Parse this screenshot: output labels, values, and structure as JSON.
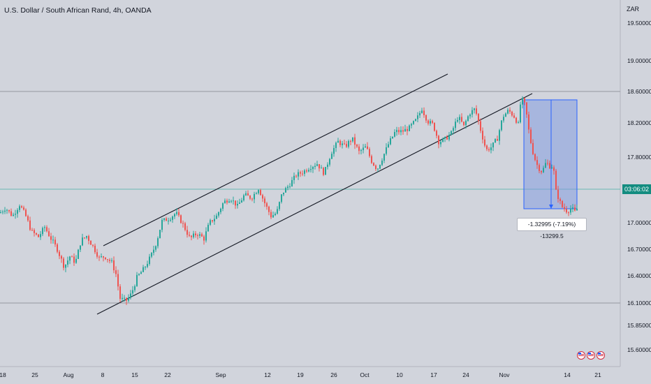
{
  "chart_data": {
    "type": "candlestick",
    "title": "U.S. Dollar / South African Rand, 4h, OANDA",
    "currency": "ZAR",
    "y_ticks": [
      "19.50000",
      "19.00000",
      "18.60000",
      "18.20000",
      "17.80000",
      "17.00000",
      "16.70000",
      "16.40000",
      "16.10000",
      "15.85000",
      "15.60000"
    ],
    "y_tick_values": [
      19.5,
      19.0,
      18.6,
      18.2,
      17.8,
      17.0,
      16.7,
      16.4,
      16.1,
      15.85,
      15.6
    ],
    "x_ticks": [
      "18",
      "25",
      "Aug",
      "8",
      "15",
      "22",
      "Sep",
      "12",
      "19",
      "26",
      "Oct",
      "10",
      "17",
      "24",
      "Nov",
      "14",
      "21"
    ],
    "last_price_countdown": "03:06:02",
    "measurement_label": "-1.32995 (-7.19%) -13299.5",
    "horizontal_levels": [
      18.6,
      16.1
    ],
    "price_path": [
      [
        0,
        17.12
      ],
      [
        8,
        17.18
      ],
      [
        18,
        17.08
      ],
      [
        28,
        17.22
      ],
      [
        36,
        17.1
      ],
      [
        45,
        16.9
      ],
      [
        55,
        16.84
      ],
      [
        64,
        16.95
      ],
      [
        73,
        16.82
      ],
      [
        82,
        16.7
      ],
      [
        92,
        16.5
      ],
      [
        100,
        16.62
      ],
      [
        108,
        16.55
      ],
      [
        116,
        16.8
      ],
      [
        124,
        16.85
      ],
      [
        134,
        16.72
      ],
      [
        142,
        16.6
      ],
      [
        150,
        16.62
      ],
      [
        160,
        16.55
      ],
      [
        166,
        16.42
      ],
      [
        172,
        16.15
      ],
      [
        180,
        16.12
      ],
      [
        188,
        16.2
      ],
      [
        196,
        16.38
      ],
      [
        206,
        16.48
      ],
      [
        216,
        16.62
      ],
      [
        224,
        16.78
      ],
      [
        232,
        17.02
      ],
      [
        242,
        17.05
      ],
      [
        252,
        17.12
      ],
      [
        262,
        16.98
      ],
      [
        272,
        16.82
      ],
      [
        282,
        16.88
      ],
      [
        292,
        16.82
      ],
      [
        300,
        17.0
      ],
      [
        310,
        17.08
      ],
      [
        320,
        17.25
      ],
      [
        330,
        17.3
      ],
      [
        340,
        17.2
      ],
      [
        350,
        17.34
      ],
      [
        360,
        17.3
      ],
      [
        370,
        17.42
      ],
      [
        380,
        17.22
      ],
      [
        388,
        17.08
      ],
      [
        396,
        17.12
      ],
      [
        404,
        17.36
      ],
      [
        414,
        17.46
      ],
      [
        424,
        17.58
      ],
      [
        434,
        17.62
      ],
      [
        444,
        17.68
      ],
      [
        454,
        17.72
      ],
      [
        464,
        17.6
      ],
      [
        474,
        17.85
      ],
      [
        484,
        17.98
      ],
      [
        494,
        17.92
      ],
      [
        504,
        18.02
      ],
      [
        514,
        17.86
      ],
      [
        524,
        17.92
      ],
      [
        532,
        17.75
      ],
      [
        540,
        17.65
      ],
      [
        548,
        17.8
      ],
      [
        556,
        17.95
      ],
      [
        566,
        18.1
      ],
      [
        576,
        18.1
      ],
      [
        586,
        18.14
      ],
      [
        596,
        18.24
      ],
      [
        604,
        18.38
      ],
      [
        612,
        18.22
      ],
      [
        620,
        18.18
      ],
      [
        628,
        17.98
      ],
      [
        636,
        18.0
      ],
      [
        646,
        18.08
      ],
      [
        656,
        18.28
      ],
      [
        664,
        18.16
      ],
      [
        672,
        18.32
      ],
      [
        680,
        18.38
      ],
      [
        688,
        18.12
      ],
      [
        696,
        17.88
      ],
      [
        704,
        17.92
      ],
      [
        712,
        18.02
      ],
      [
        720,
        18.28
      ],
      [
        728,
        18.36
      ],
      [
        736,
        18.28
      ],
      [
        742,
        18.18
      ],
      [
        746,
        18.52
      ],
      [
        752,
        18.42
      ],
      [
        758,
        18.05
      ],
      [
        764,
        17.82
      ],
      [
        770,
        17.68
      ],
      [
        776,
        17.62
      ],
      [
        782,
        17.74
      ],
      [
        788,
        17.68
      ],
      [
        792,
        17.7
      ],
      [
        796,
        17.38
      ],
      [
        804,
        17.2
      ],
      [
        812,
        17.14
      ],
      [
        818,
        17.18
      ],
      [
        824,
        17.12
      ],
      [
        828,
        17.22
      ]
    ]
  }
}
